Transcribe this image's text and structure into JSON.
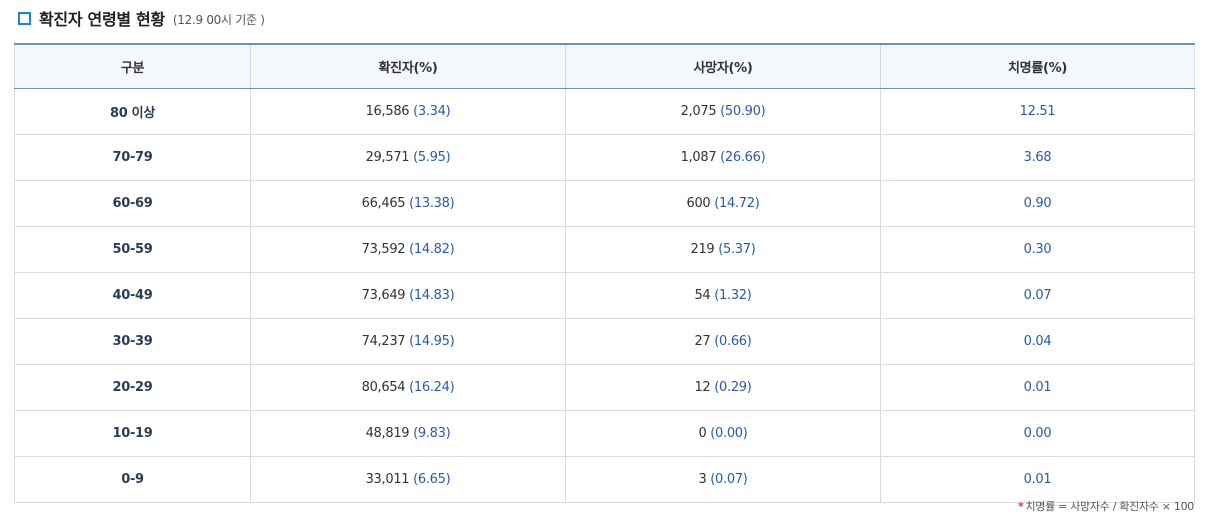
{
  "header": {
    "title": "확진자 연령별 현황",
    "subtitle": "(12.9 00시 기준 )"
  },
  "table": {
    "columns": [
      "구분",
      "확진자(%)",
      "사망자(%)",
      "치명률(%)"
    ],
    "rows": [
      {
        "category": "80 이상",
        "confirmed": "16,586",
        "confirmed_pct": "(3.34)",
        "deaths": "2,075",
        "deaths_pct": "(50.90)",
        "fatality": "12.51"
      },
      {
        "category": "70-79",
        "confirmed": "29,571",
        "confirmed_pct": "(5.95)",
        "deaths": "1,087",
        "deaths_pct": "(26.66)",
        "fatality": "3.68"
      },
      {
        "category": "60-69",
        "confirmed": "66,465",
        "confirmed_pct": "(13.38)",
        "deaths": "600",
        "deaths_pct": "(14.72)",
        "fatality": "0.90"
      },
      {
        "category": "50-59",
        "confirmed": "73,592",
        "confirmed_pct": "(14.82)",
        "deaths": "219",
        "deaths_pct": "(5.37)",
        "fatality": "0.30"
      },
      {
        "category": "40-49",
        "confirmed": "73,649",
        "confirmed_pct": "(14.83)",
        "deaths": "54",
        "deaths_pct": "(1.32)",
        "fatality": "0.07"
      },
      {
        "category": "30-39",
        "confirmed": "74,237",
        "confirmed_pct": "(14.95)",
        "deaths": "27",
        "deaths_pct": "(0.66)",
        "fatality": "0.04"
      },
      {
        "category": "20-29",
        "confirmed": "80,654",
        "confirmed_pct": "(16.24)",
        "deaths": "12",
        "deaths_pct": "(0.29)",
        "fatality": "0.01"
      },
      {
        "category": "10-19",
        "confirmed": "48,819",
        "confirmed_pct": "(9.83)",
        "deaths": "0",
        "deaths_pct": "(0.00)",
        "fatality": "0.00"
      },
      {
        "category": "0-9",
        "confirmed": "33,011",
        "confirmed_pct": "(6.65)",
        "deaths": "3",
        "deaths_pct": "(0.07)",
        "fatality": "0.01"
      }
    ]
  },
  "footnote": {
    "marker": "*",
    "text": "치명률 = 사망자수 / 확진자수 × 100"
  },
  "colors": {
    "accent": "#1a86cf",
    "percent_text": "#2b5aa6",
    "header_bg": "#f4f8fc",
    "table_top_border": "#6f8fb5"
  },
  "icons": {
    "title_marker": "square-bullet-icon"
  }
}
